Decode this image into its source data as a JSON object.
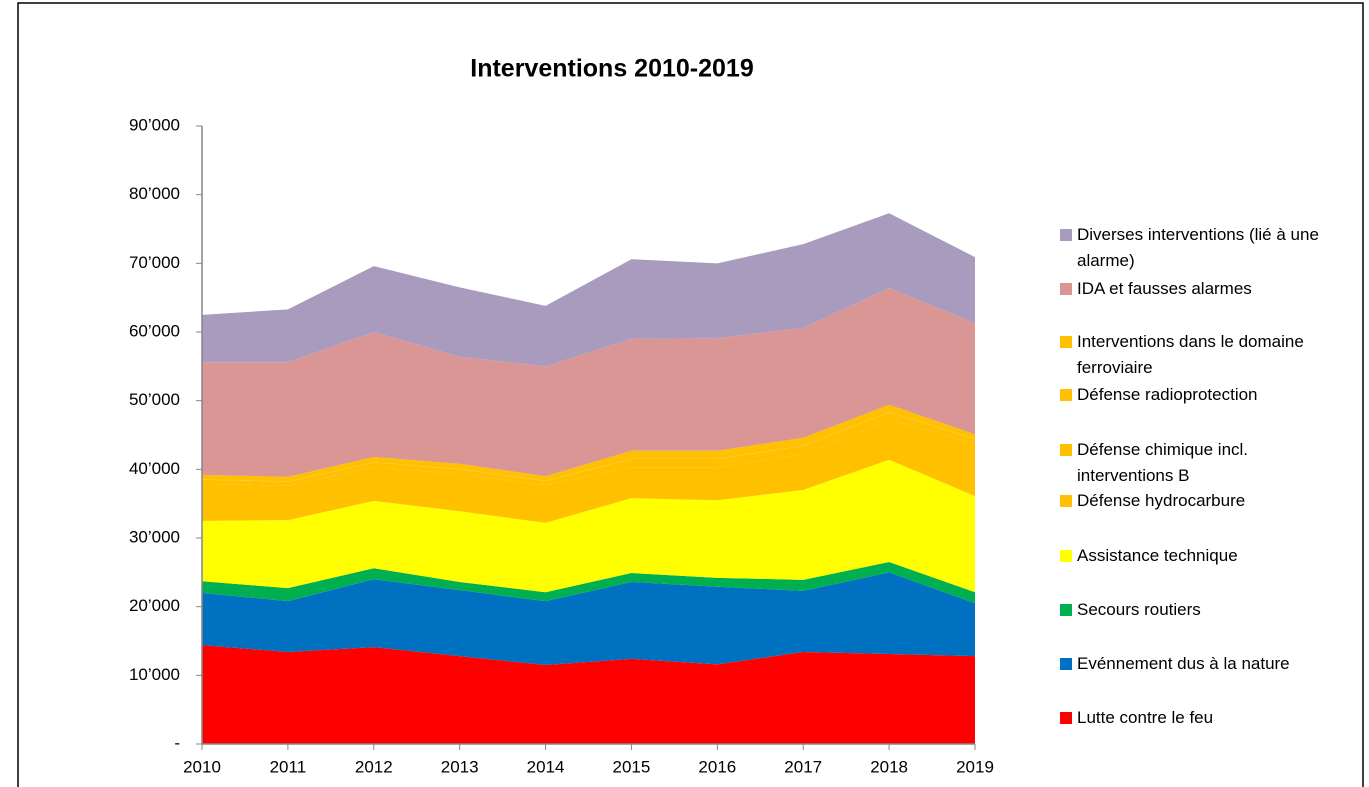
{
  "chart_data": {
    "type": "stacked_area",
    "title": "Interventions 2010-2019",
    "categories": [
      "2010",
      "2011",
      "2012",
      "2013",
      "2014",
      "2015",
      "2016",
      "2017",
      "2018",
      "2019"
    ],
    "ylim": [
      0,
      90000
    ],
    "yticks": [
      {
        "value": 0,
        "label": "-"
      },
      {
        "value": 10000,
        "label": "10’000"
      },
      {
        "value": 20000,
        "label": "20’000"
      },
      {
        "value": 30000,
        "label": "30’000"
      },
      {
        "value": 40000,
        "label": "40’000"
      },
      {
        "value": 50000,
        "label": "50’000"
      },
      {
        "value": 60000,
        "label": "60’000"
      },
      {
        "value": 70000,
        "label": "70’000"
      },
      {
        "value": 80000,
        "label": "80’000"
      },
      {
        "value": 90000,
        "label": "90’000"
      }
    ],
    "legend": "right",
    "series": [
      {
        "name": "Lutte contre le feu",
        "color": "#ff0000",
        "values": [
          14400,
          13400,
          14100,
          12800,
          11500,
          12400,
          11600,
          13400,
          13100,
          12800
        ]
      },
      {
        "name": "Evénnement dus à la nature",
        "color": "#0070c0",
        "values": [
          7600,
          7400,
          9900,
          9600,
          9300,
          11200,
          11300,
          8900,
          11900,
          7700
        ]
      },
      {
        "name": "Secours routiers",
        "color": "#00b050",
        "values": [
          1700,
          1900,
          1600,
          1200,
          1300,
          1300,
          1300,
          1600,
          1500,
          1600
        ]
      },
      {
        "name": "Assistance technique",
        "color": "#ffff00",
        "values": [
          8800,
          9900,
          9800,
          10300,
          10100,
          10900,
          11300,
          13100,
          14900,
          14000
        ]
      },
      {
        "name": "Défense hydrocarbure",
        "color": "#ffc000",
        "values": [
          5400,
          5000,
          4900,
          5400,
          5500,
          4500,
          4800,
          5200,
          5800,
          7600
        ]
      },
      {
        "name": "Défense chimique incl. interventions B",
        "color": "#ffc000",
        "values": [
          600,
          600,
          700,
          700,
          600,
          1200,
          1200,
          1200,
          1100,
          700
        ]
      },
      {
        "name": "Défense radioprotection",
        "color": "#ffc000",
        "values": [
          50,
          50,
          50,
          50,
          50,
          50,
          50,
          50,
          50,
          50
        ]
      },
      {
        "name": "Interventions dans le domaine ferroviaire",
        "color": "#ffc000",
        "values": [
          650,
          650,
          750,
          750,
          650,
          1150,
          1150,
          1150,
          1050,
          650
        ]
      },
      {
        "name": "IDA et fausses alarmes",
        "color": "#d99694",
        "values": [
          16400,
          16700,
          18200,
          15600,
          16000,
          16300,
          16400,
          16000,
          17000,
          16200
        ]
      },
      {
        "name": "Diverses interventions (lié à une alarme)",
        "color": "#a99bbd",
        "values": [
          6900,
          7700,
          9600,
          10100,
          8800,
          11600,
          10900,
          12200,
          10900,
          9600
        ]
      }
    ]
  }
}
